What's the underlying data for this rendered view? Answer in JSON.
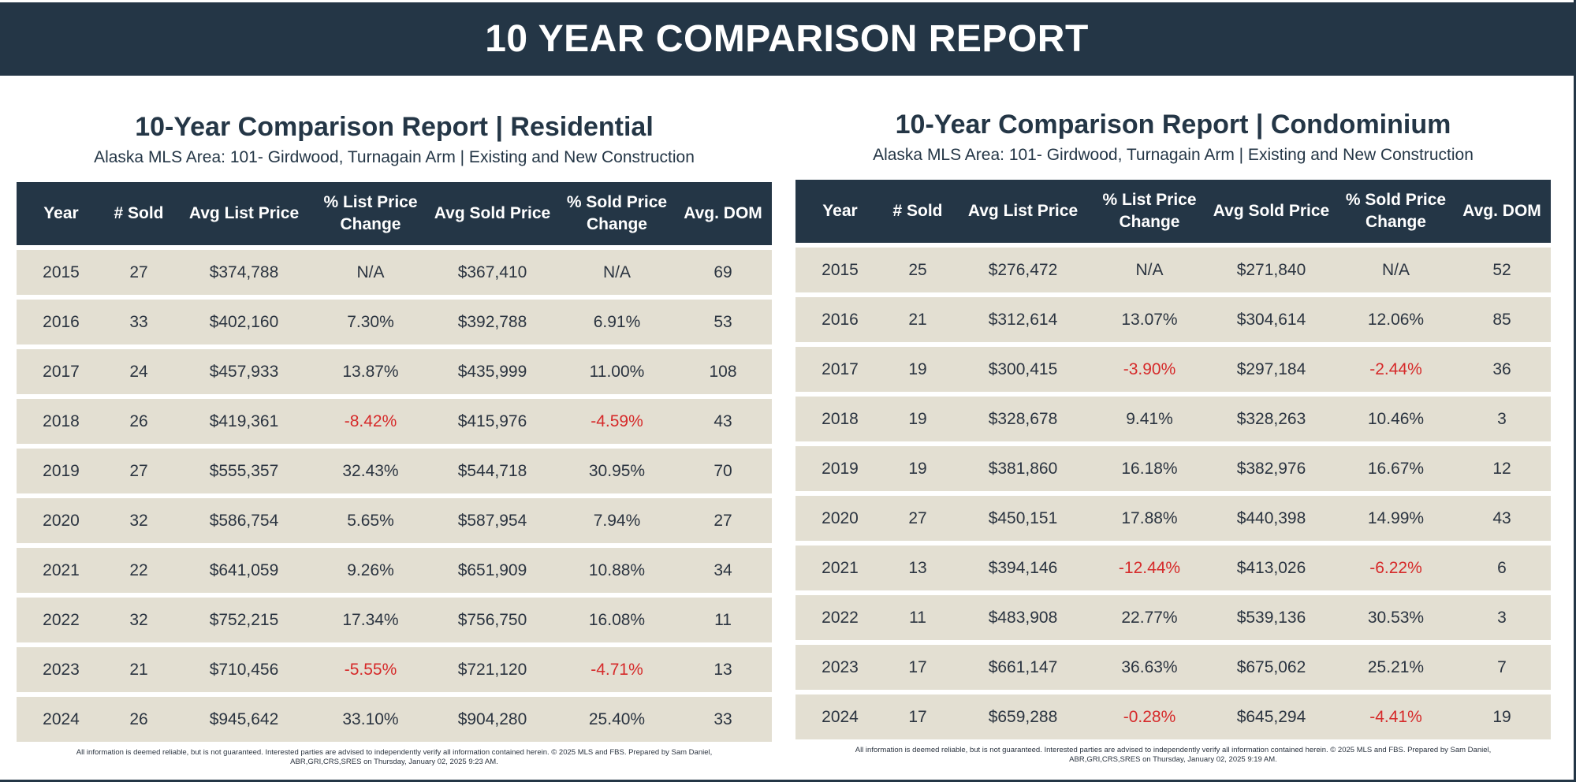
{
  "header": {
    "title": "10 YEAR COMPARISON REPORT"
  },
  "columns": [
    "Year",
    "# Sold",
    "Avg List Price",
    "% List Price Change",
    "Avg Sold Price",
    "% Sold Price Change",
    "Avg. DOM"
  ],
  "colors": {
    "banner": "#243646",
    "row": "#e3dfd2",
    "negative": "#d62a2a"
  },
  "residential": {
    "title": "10-Year Comparison Report | Residential",
    "subtitle": "Alaska MLS Area: 101- Girdwood, Turnagain Arm | Existing and New Construction",
    "rows": [
      [
        "2015",
        "27",
        "$374,788",
        "N/A",
        "$367,410",
        "N/A",
        "69"
      ],
      [
        "2016",
        "33",
        "$402,160",
        "7.30%",
        "$392,788",
        "6.91%",
        "53"
      ],
      [
        "2017",
        "24",
        "$457,933",
        "13.87%",
        "$435,999",
        "11.00%",
        "108"
      ],
      [
        "2018",
        "26",
        "$419,361",
        "-8.42%",
        "$415,976",
        "-4.59%",
        "43"
      ],
      [
        "2019",
        "27",
        "$555,357",
        "32.43%",
        "$544,718",
        "30.95%",
        "70"
      ],
      [
        "2020",
        "32",
        "$586,754",
        "5.65%",
        "$587,954",
        "7.94%",
        "27"
      ],
      [
        "2021",
        "22",
        "$641,059",
        "9.26%",
        "$651,909",
        "10.88%",
        "34"
      ],
      [
        "2022",
        "32",
        "$752,215",
        "17.34%",
        "$756,750",
        "16.08%",
        "11"
      ],
      [
        "2023",
        "21",
        "$710,456",
        "-5.55%",
        "$721,120",
        "-4.71%",
        "13"
      ],
      [
        "2024",
        "26",
        "$945,642",
        "33.10%",
        "$904,280",
        "25.40%",
        "33"
      ]
    ],
    "footnote": "All information is deemed reliable, but is not guaranteed. Interested parties are advised to independently verify all information contained herein. © 2025 MLS and FBS. Prepared by Sam Daniel, ABR,GRI,CRS,SRES on Thursday, January 02, 2025 9:23 AM."
  },
  "condominium": {
    "title": "10-Year Comparison Report | Condominium",
    "subtitle": "Alaska MLS Area: 101- Girdwood, Turnagain Arm | Existing and New Construction",
    "rows": [
      [
        "2015",
        "25",
        "$276,472",
        "N/A",
        "$271,840",
        "N/A",
        "52"
      ],
      [
        "2016",
        "21",
        "$312,614",
        "13.07%",
        "$304,614",
        "12.06%",
        "85"
      ],
      [
        "2017",
        "19",
        "$300,415",
        "-3.90%",
        "$297,184",
        "-2.44%",
        "36"
      ],
      [
        "2018",
        "19",
        "$328,678",
        "9.41%",
        "$328,263",
        "10.46%",
        "3"
      ],
      [
        "2019",
        "19",
        "$381,860",
        "16.18%",
        "$382,976",
        "16.67%",
        "12"
      ],
      [
        "2020",
        "27",
        "$450,151",
        "17.88%",
        "$440,398",
        "14.99%",
        "43"
      ],
      [
        "2021",
        "13",
        "$394,146",
        "-12.44%",
        "$413,026",
        "-6.22%",
        "6"
      ],
      [
        "2022",
        "11",
        "$483,908",
        "22.77%",
        "$539,136",
        "30.53%",
        "3"
      ],
      [
        "2023",
        "17",
        "$661,147",
        "36.63%",
        "$675,062",
        "25.21%",
        "7"
      ],
      [
        "2024",
        "17",
        "$659,288",
        "-0.28%",
        "$645,294",
        "-4.41%",
        "19"
      ]
    ],
    "footnote": "All information is deemed reliable, but is not guaranteed. Interested parties are advised to independently verify all information contained herein. © 2025 MLS and FBS. Prepared by Sam Daniel, ABR,GRI,CRS,SRES on Thursday, January 02, 2025 9:19 AM."
  }
}
